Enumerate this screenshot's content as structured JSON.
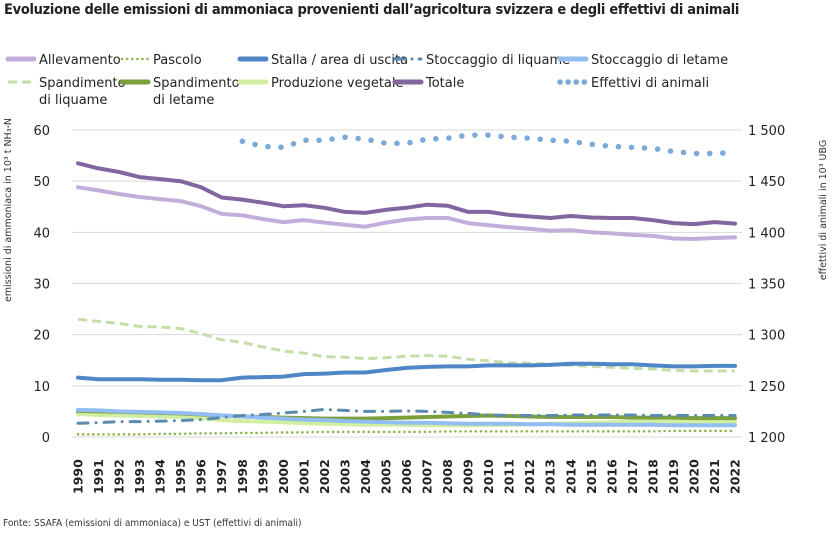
{
  "title": "Evoluzione delle emissioni di ammoniaca provenienti dall’agricoltura svizzera e degli effettivi di animali",
  "source": "Fonte: SSAFA (emissioni di ammoniaca) e UST (effettivi di animali)",
  "chart_data": {
    "type": "line",
    "title": "Evoluzione delle emissioni di ammoniaca provenienti dall’agricoltura svizzera e degli effettivi di animali",
    "ylabel": "emissioni di ammoniaca in 10³ t NH₃-N",
    "y2label": "effettivi di animali in 10³ UBG",
    "ylim": [
      0,
      60
    ],
    "y2lim": [
      1200,
      1500
    ],
    "yticks": [
      "0",
      "10",
      "20",
      "30",
      "40",
      "50",
      "60"
    ],
    "y2ticks": [
      "1 200",
      "1 250",
      "1 300",
      "1 350",
      "1 400",
      "1 450",
      "1 500"
    ],
    "grid": true,
    "legend_placement": "top",
    "x": [
      1990,
      1991,
      1992,
      1993,
      1994,
      1995,
      1996,
      1997,
      1998,
      1999,
      2000,
      2001,
      2002,
      2003,
      2004,
      2005,
      2006,
      2007,
      2008,
      2009,
      2010,
      2011,
      2012,
      2013,
      2014,
      2015,
      2016,
      2017,
      2018,
      2019,
      2020,
      2021,
      2022
    ],
    "series": [
      {
        "name": "Allevamento",
        "color": "#c3aedb",
        "style": "solid",
        "axis": "left",
        "values": [
          48.8,
          48.2,
          47.5,
          46.9,
          46.5,
          46.1,
          45.1,
          43.6,
          43.3,
          42.6,
          42.0,
          42.4,
          41.9,
          41.5,
          41.1,
          41.9,
          42.5,
          42.8,
          42.8,
          41.8,
          41.4,
          41.0,
          40.7,
          40.3,
          40.4,
          40.0,
          39.8,
          39.5,
          39.3,
          38.8,
          38.7,
          38.9,
          39.0
        ]
      },
      {
        "name": "Pascolo",
        "color": "#8ab44a",
        "style": "dotted",
        "axis": "left",
        "values": [
          0.5,
          0.5,
          0.5,
          0.5,
          0.6,
          0.6,
          0.7,
          0.7,
          0.8,
          0.8,
          0.9,
          0.9,
          1.0,
          1.0,
          1.0,
          1.0,
          1.0,
          1.0,
          1.1,
          1.1,
          1.1,
          1.1,
          1.1,
          1.1,
          1.1,
          1.1,
          1.1,
          1.1,
          1.1,
          1.2,
          1.2,
          1.2,
          1.2
        ]
      },
      {
        "name": "Stalla / area di uscita",
        "color": "#4f86c6",
        "style": "solid",
        "axis": "left",
        "values": [
          11.6,
          11.3,
          11.3,
          11.3,
          11.2,
          11.2,
          11.1,
          11.1,
          11.6,
          11.7,
          11.8,
          12.3,
          12.4,
          12.6,
          12.6,
          13.1,
          13.5,
          13.7,
          13.8,
          13.8,
          14.0,
          14.0,
          14.0,
          14.1,
          14.3,
          14.3,
          14.2,
          14.2,
          14.0,
          13.8,
          13.8,
          13.9,
          13.9
        ]
      },
      {
        "name": "Stoccaggio di liquame",
        "color": "#5a8ab0",
        "style": "dashdot",
        "axis": "left",
        "values": [
          2.7,
          2.8,
          3.0,
          3.0,
          3.1,
          3.2,
          3.4,
          3.8,
          4.2,
          4.4,
          4.7,
          5.0,
          5.4,
          5.2,
          5.0,
          5.0,
          5.1,
          5.0,
          4.8,
          4.6,
          4.3,
          4.2,
          4.2,
          4.2,
          4.3,
          4.3,
          4.3,
          4.3,
          4.2,
          4.2,
          4.2,
          4.2,
          4.2
        ]
      },
      {
        "name": "Stoccaggio di letame",
        "color": "#92bdf0",
        "style": "solid",
        "axis": "left",
        "values": [
          5.3,
          5.2,
          5.0,
          4.9,
          4.8,
          4.7,
          4.5,
          4.2,
          4.0,
          3.8,
          3.6,
          3.4,
          3.3,
          3.1,
          3.0,
          2.9,
          2.8,
          2.8,
          2.7,
          2.6,
          2.6,
          2.6,
          2.5,
          2.5,
          2.4,
          2.4,
          2.4,
          2.4,
          2.4,
          2.3,
          2.3,
          2.3,
          2.3
        ]
      },
      {
        "name": "Spandimento di liquame",
        "color": "#c5dea8",
        "style": "dashed",
        "axis": "left",
        "values": [
          23.0,
          22.6,
          22.2,
          21.6,
          21.5,
          21.2,
          20.2,
          19.0,
          18.5,
          17.6,
          16.8,
          16.4,
          15.7,
          15.6,
          15.3,
          15.5,
          15.8,
          15.9,
          15.8,
          15.2,
          14.9,
          14.5,
          14.4,
          14.2,
          14.0,
          13.8,
          13.6,
          13.4,
          13.3,
          13.0,
          12.9,
          12.9,
          12.9
        ]
      },
      {
        "name": "Spandimento di letame",
        "color": "#7d9e3c",
        "style": "solid",
        "axis": "left",
        "values": [
          5.1,
          5.0,
          4.9,
          4.8,
          4.7,
          4.6,
          4.4,
          4.2,
          4.0,
          3.9,
          3.8,
          3.7,
          3.6,
          3.6,
          3.6,
          3.7,
          3.8,
          3.9,
          4.0,
          4.1,
          4.2,
          4.1,
          4.0,
          3.9,
          3.9,
          3.9,
          3.9,
          3.8,
          3.8,
          3.8,
          3.7,
          3.7,
          3.7
        ]
      },
      {
        "name": "Produzione vegetale",
        "color": "#d2eea0",
        "style": "solid",
        "axis": "left",
        "values": [
          4.5,
          4.3,
          4.2,
          4.1,
          4.0,
          3.9,
          3.7,
          3.3,
          3.1,
          3.0,
          2.9,
          2.7,
          2.6,
          2.5,
          2.4,
          2.4,
          2.4,
          2.3,
          2.3,
          2.3,
          2.4,
          2.4,
          2.5,
          2.6,
          2.7,
          2.8,
          2.9,
          3.0,
          3.0,
          3.0,
          3.0,
          3.0,
          3.0
        ]
      },
      {
        "name": "Totale",
        "color": "#8166a0",
        "style": "solid",
        "axis": "left",
        "values": [
          53.5,
          52.5,
          51.8,
          50.8,
          50.4,
          50.0,
          48.8,
          46.8,
          46.4,
          45.8,
          45.1,
          45.3,
          44.8,
          44.0,
          43.8,
          44.4,
          44.8,
          45.4,
          45.2,
          44.0,
          44.0,
          43.4,
          43.1,
          42.8,
          43.2,
          42.9,
          42.8,
          42.8,
          42.4,
          41.8,
          41.6,
          42.0,
          41.7
        ]
      },
      {
        "name": "Effettivi di animali",
        "color": "#7aaad8",
        "style": "dots",
        "axis": "right",
        "values": [
          null,
          null,
          null,
          null,
          null,
          null,
          null,
          null,
          1489,
          1484,
          1483,
          1490,
          1490,
          1493,
          1491,
          1487,
          1487,
          1491,
          1492,
          1495,
          1495,
          1493,
          1492,
          1490,
          1489,
          1486,
          1484,
          1483,
          1482,
          1479,
          1477,
          1477,
          1478
        ]
      }
    ]
  }
}
